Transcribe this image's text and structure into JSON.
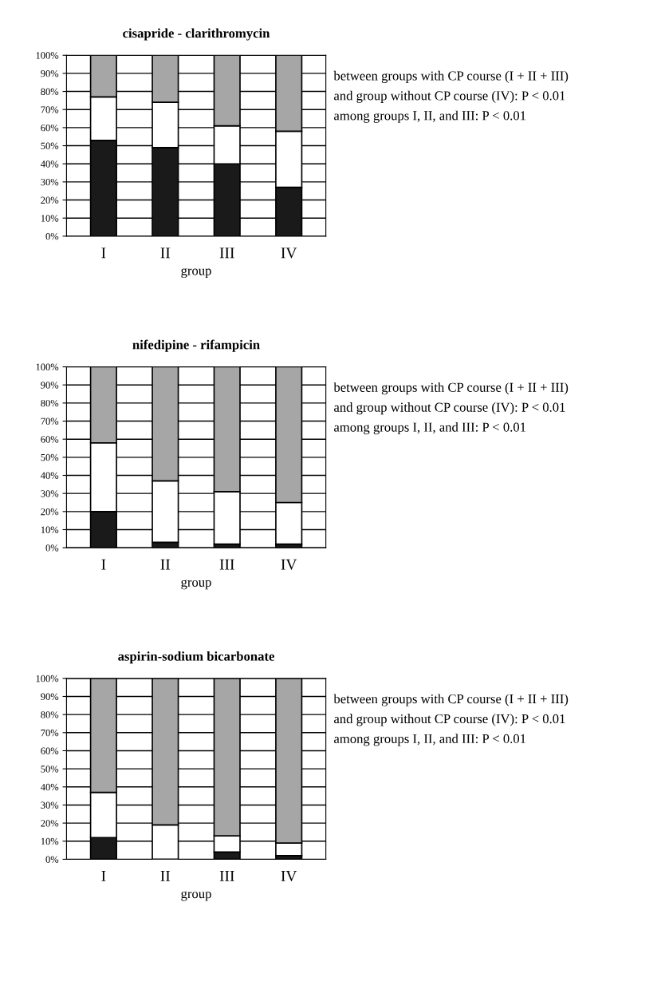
{
  "chart_data": [
    {
      "type": "bar",
      "title": "cisapride - clarithromycin",
      "xlabel": "group",
      "categories": [
        "I",
        "II",
        "III",
        "IV"
      ],
      "stacked": true,
      "ylim": [
        0,
        100
      ],
      "yticks": [
        {
          "value": 0,
          "label": "0%"
        },
        {
          "value": 10,
          "label": "10%"
        },
        {
          "value": 20,
          "label": "20%"
        },
        {
          "value": 30,
          "label": "30%"
        },
        {
          "value": 40,
          "label": "40%"
        },
        {
          "value": 50,
          "label": "50%"
        },
        {
          "value": 60,
          "label": "60%"
        },
        {
          "value": 70,
          "label": "70%"
        },
        {
          "value": 80,
          "label": "80%"
        },
        {
          "value": 90,
          "label": "90%"
        },
        {
          "value": 100,
          "label": "100%"
        }
      ],
      "grid": "y",
      "series": [
        {
          "color": "#1a1a1a",
          "values": [
            53,
            49,
            40,
            27
          ]
        },
        {
          "color": "#ffffff",
          "values": [
            24,
            25,
            21,
            31
          ]
        },
        {
          "color": "#a6a6a6",
          "values": [
            23,
            26,
            39,
            42
          ]
        }
      ],
      "annotations": [
        "between groups with CP course (I + II + III)",
        "and group without CP course (IV): P < 0.01",
        "among groups I, II, and III: P < 0.01"
      ]
    },
    {
      "type": "bar",
      "title": "nifedipine - rifampicin",
      "xlabel": "group",
      "categories": [
        "I",
        "II",
        "III",
        "IV"
      ],
      "stacked": true,
      "ylim": [
        0,
        100
      ],
      "yticks": [
        {
          "value": 0,
          "label": "0%"
        },
        {
          "value": 10,
          "label": "10%"
        },
        {
          "value": 20,
          "label": "20%"
        },
        {
          "value": 30,
          "label": "30%"
        },
        {
          "value": 40,
          "label": "40%"
        },
        {
          "value": 50,
          "label": "50%"
        },
        {
          "value": 60,
          "label": "60%"
        },
        {
          "value": 70,
          "label": "70%"
        },
        {
          "value": 80,
          "label": "80%"
        },
        {
          "value": 90,
          "label": "90%"
        },
        {
          "value": 100,
          "label": "100%"
        }
      ],
      "grid": "y",
      "series": [
        {
          "color": "#1a1a1a",
          "values": [
            20,
            3,
            2,
            2
          ]
        },
        {
          "color": "#ffffff",
          "values": [
            38,
            34,
            29,
            23
          ]
        },
        {
          "color": "#a6a6a6",
          "values": [
            42,
            63,
            69,
            75
          ]
        }
      ],
      "annotations": [
        "between groups with CP course (I + II + III)",
        "and group without CP course (IV): P < 0.01",
        "among groups I, II, and III: P < 0.01"
      ]
    },
    {
      "type": "bar",
      "title": "aspirin-sodium bicarbonate",
      "xlabel": "group",
      "categories": [
        "I",
        "II",
        "III",
        "IV"
      ],
      "stacked": true,
      "ylim": [
        0,
        100
      ],
      "yticks": [
        {
          "value": 0,
          "label": "0%"
        },
        {
          "value": 10,
          "label": "10%"
        },
        {
          "value": 20,
          "label": "20%"
        },
        {
          "value": 30,
          "label": "30%"
        },
        {
          "value": 40,
          "label": "40%"
        },
        {
          "value": 50,
          "label": "50%"
        },
        {
          "value": 60,
          "label": "60%"
        },
        {
          "value": 70,
          "label": "70%"
        },
        {
          "value": 80,
          "label": "80%"
        },
        {
          "value": 90,
          "label": "90%"
        },
        {
          "value": 100,
          "label": "100%"
        }
      ],
      "grid": "y",
      "series": [
        {
          "color": "#1a1a1a",
          "values": [
            12,
            0,
            4,
            2
          ]
        },
        {
          "color": "#ffffff",
          "values": [
            25,
            19,
            9,
            7
          ]
        },
        {
          "color": "#a6a6a6",
          "values": [
            63,
            81,
            87,
            91
          ]
        }
      ],
      "annotations": [
        "between groups with CP course (I + II + III)",
        "and group without CP course (IV): P < 0.01",
        "among groups I, II, and III: P < 0.01"
      ]
    }
  ]
}
